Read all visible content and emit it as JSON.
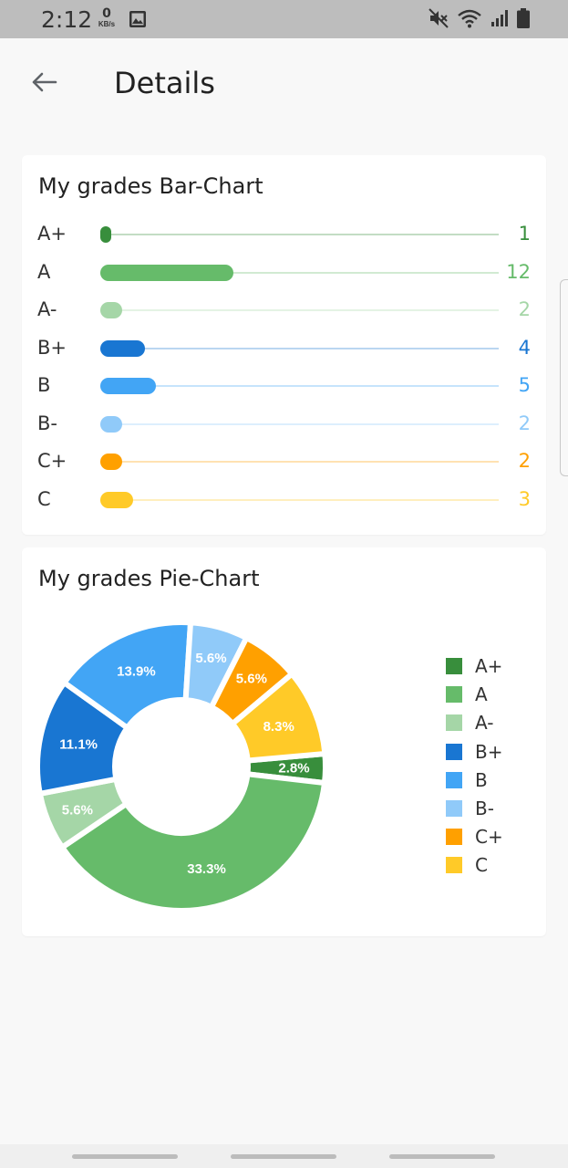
{
  "status_bar": {
    "time": "2:12",
    "speed_value": "0",
    "speed_unit": "KB/s",
    "icons": [
      "image-icon",
      "mute-icon",
      "wifi-icon",
      "signal-icon",
      "battery-icon"
    ]
  },
  "app_bar": {
    "back_icon": "arrow-left-icon",
    "title": "Details"
  },
  "bar_card": {
    "title": "My grades Bar-Chart"
  },
  "pie_card": {
    "title": "My grades Pie-Chart"
  },
  "grades": [
    {
      "label": "A+",
      "count": "1",
      "color": "#388e3c"
    },
    {
      "label": "A",
      "count": "12",
      "color": "#66bb6a"
    },
    {
      "label": "A-",
      "count": "2",
      "color": "#a5d6a7"
    },
    {
      "label": "B+",
      "count": "4",
      "color": "#1976d2"
    },
    {
      "label": "B",
      "count": "5",
      "color": "#42a5f5"
    },
    {
      "label": "B-",
      "count": "2",
      "color": "#90caf9"
    },
    {
      "label": "C+",
      "count": "2",
      "color": "#ffa000"
    },
    {
      "label": "C",
      "count": "3",
      "color": "#ffca28"
    }
  ],
  "chart_data": [
    {
      "type": "bar",
      "title": "My grades Bar-Chart",
      "orientation": "horizontal",
      "categories": [
        "A+",
        "A",
        "A-",
        "B+",
        "B",
        "B-",
        "C+",
        "C"
      ],
      "values": [
        1,
        12,
        2,
        4,
        5,
        2,
        2,
        3
      ],
      "colors": [
        "#388e3c",
        "#66bb6a",
        "#a5d6a7",
        "#1976d2",
        "#42a5f5",
        "#90caf9",
        "#ffa000",
        "#ffca28"
      ],
      "xlim": [
        0,
        36
      ]
    },
    {
      "type": "pie",
      "title": "My grades Pie-Chart",
      "donut": true,
      "categories": [
        "A+",
        "A",
        "A-",
        "B+",
        "B",
        "B-",
        "C+",
        "C"
      ],
      "values": [
        1,
        12,
        2,
        4,
        5,
        2,
        2,
        3
      ],
      "slice_labels": [
        "2.8%",
        "33.3%",
        "5.6%",
        "11.1%",
        "13.9%",
        "5.6%",
        "5.6%",
        "8.3%"
      ],
      "colors": [
        "#388e3c",
        "#66bb6a",
        "#a5d6a7",
        "#1976d2",
        "#42a5f5",
        "#90caf9",
        "#ffa000",
        "#ffca28"
      ],
      "legend_position": "right"
    }
  ]
}
